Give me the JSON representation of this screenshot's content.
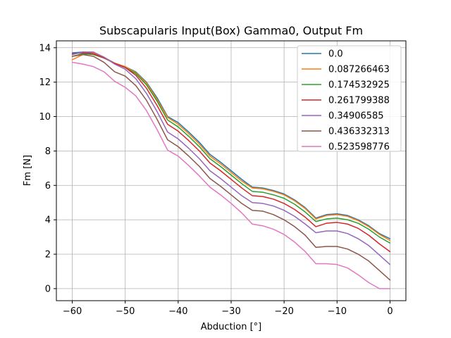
{
  "chart_data": {
    "type": "line",
    "title": "Subscapularis Input(Box) Gamma0, Output Fm",
    "xlabel": "Abduction [°]",
    "ylabel": "Fm [N]",
    "xlim": [
      -63,
      3
    ],
    "ylim": [
      -0.7,
      14.4
    ],
    "xticks": [
      -60,
      -50,
      -40,
      -30,
      -20,
      -10,
      0
    ],
    "yticks": [
      0,
      2,
      4,
      6,
      8,
      10,
      12,
      14
    ],
    "grid": true,
    "legend_position": "top-right",
    "x": [
      -60,
      -58,
      -56,
      -54,
      -52,
      -50,
      -48,
      -46,
      -44,
      -42,
      -40,
      -38,
      -36,
      -34,
      -32,
      -30,
      -28,
      -26,
      -24,
      -22,
      -20,
      -18,
      -16,
      -14,
      -12,
      -10,
      -8,
      -6,
      -4,
      -2,
      0
    ],
    "series": [
      {
        "name": "0.0",
        "color": "#1f77b4",
        "values": [
          13.7,
          13.75,
          13.7,
          13.45,
          13.1,
          12.9,
          12.6,
          12.0,
          11.1,
          10.0,
          9.65,
          9.1,
          8.5,
          7.8,
          7.35,
          6.85,
          6.35,
          5.9,
          5.85,
          5.7,
          5.5,
          5.15,
          4.7,
          4.1,
          4.3,
          4.35,
          4.25,
          4.0,
          3.65,
          3.2,
          2.9
        ]
      },
      {
        "name": "0.087266463",
        "color": "#ff7f0e",
        "values": [
          13.3,
          13.6,
          13.7,
          13.45,
          13.1,
          12.9,
          12.55,
          11.95,
          11.0,
          9.95,
          9.55,
          9.0,
          8.4,
          7.7,
          7.25,
          6.75,
          6.25,
          5.85,
          5.8,
          5.65,
          5.45,
          5.1,
          4.65,
          4.05,
          4.25,
          4.3,
          4.2,
          3.95,
          3.6,
          3.15,
          2.8
        ]
      },
      {
        "name": "0.174532925",
        "color": "#2ca02c",
        "values": [
          13.5,
          13.65,
          13.6,
          13.4,
          13.1,
          12.85,
          12.5,
          11.85,
          10.9,
          9.8,
          9.4,
          8.85,
          8.25,
          7.55,
          7.1,
          6.6,
          6.1,
          5.65,
          5.6,
          5.45,
          5.25,
          4.9,
          4.45,
          3.9,
          4.05,
          4.1,
          4.0,
          3.8,
          3.45,
          3.0,
          2.65
        ]
      },
      {
        "name": "0.261799388",
        "color": "#d62728",
        "values": [
          13.65,
          13.7,
          13.65,
          13.4,
          13.1,
          12.85,
          12.4,
          11.65,
          10.65,
          9.55,
          9.15,
          8.6,
          8.0,
          7.3,
          6.85,
          6.35,
          5.85,
          5.4,
          5.35,
          5.2,
          4.95,
          4.6,
          4.15,
          3.6,
          3.8,
          3.85,
          3.75,
          3.5,
          3.1,
          2.6,
          2.15
        ]
      },
      {
        "name": "0.34906585",
        "color": "#9467bd",
        "values": [
          13.6,
          13.75,
          13.75,
          13.45,
          13.05,
          12.75,
          12.2,
          11.35,
          10.3,
          9.1,
          8.7,
          8.15,
          7.55,
          6.85,
          6.4,
          5.9,
          5.4,
          5.0,
          4.95,
          4.8,
          4.55,
          4.2,
          3.75,
          3.25,
          3.35,
          3.35,
          3.2,
          2.9,
          2.5,
          1.95,
          1.4
        ]
      },
      {
        "name": "0.436332313",
        "color": "#8c564b",
        "values": [
          13.5,
          13.6,
          13.5,
          13.15,
          12.6,
          12.35,
          11.8,
          10.95,
          9.85,
          8.65,
          8.25,
          7.7,
          7.1,
          6.4,
          5.95,
          5.45,
          4.95,
          4.55,
          4.5,
          4.3,
          4.0,
          3.6,
          3.1,
          2.4,
          2.45,
          2.45,
          2.3,
          2.0,
          1.6,
          1.05,
          0.5
        ]
      },
      {
        "name": "0.523598776",
        "color": "#e377c2",
        "values": [
          13.15,
          13.05,
          12.9,
          12.6,
          12.05,
          11.7,
          11.2,
          10.35,
          9.25,
          8.05,
          7.7,
          7.15,
          6.55,
          5.9,
          5.45,
          4.95,
          4.4,
          3.75,
          3.65,
          3.45,
          3.15,
          2.7,
          2.15,
          1.45,
          1.45,
          1.4,
          1.2,
          0.8,
          0.35,
          0.0,
          0.0
        ]
      }
    ]
  }
}
